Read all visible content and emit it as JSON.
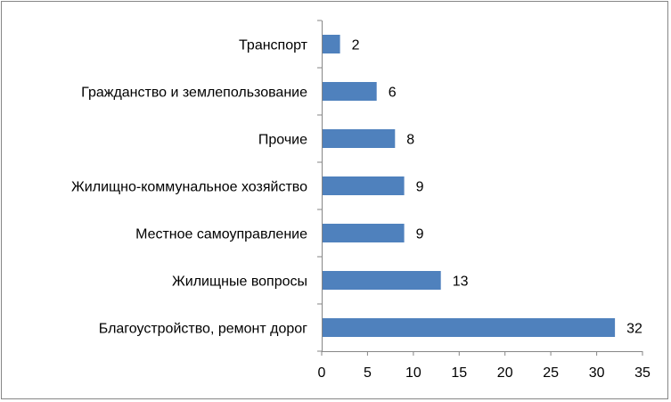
{
  "chart_data": {
    "type": "bar",
    "orientation": "horizontal",
    "categories": [
      "Транспорт",
      "Гражданство и землепользование",
      "Прочие",
      "Жилищно-коммунальное хозяйство",
      "Местное самоуправление",
      "Жилищные вопросы",
      "Благоустройство, ремонт дорог"
    ],
    "values": [
      2,
      6,
      8,
      9,
      9,
      13,
      32
    ],
    "data_labels": [
      "2",
      "6",
      "8",
      "9",
      "9",
      "13",
      "32"
    ],
    "xlim": [
      0,
      35
    ],
    "x_ticks": [
      "0",
      "5",
      "10",
      "15",
      "20",
      "25",
      "30",
      "35"
    ],
    "bar_color": "#4F81BD",
    "axis_color": "#868686",
    "grid": false,
    "legend": "none"
  }
}
